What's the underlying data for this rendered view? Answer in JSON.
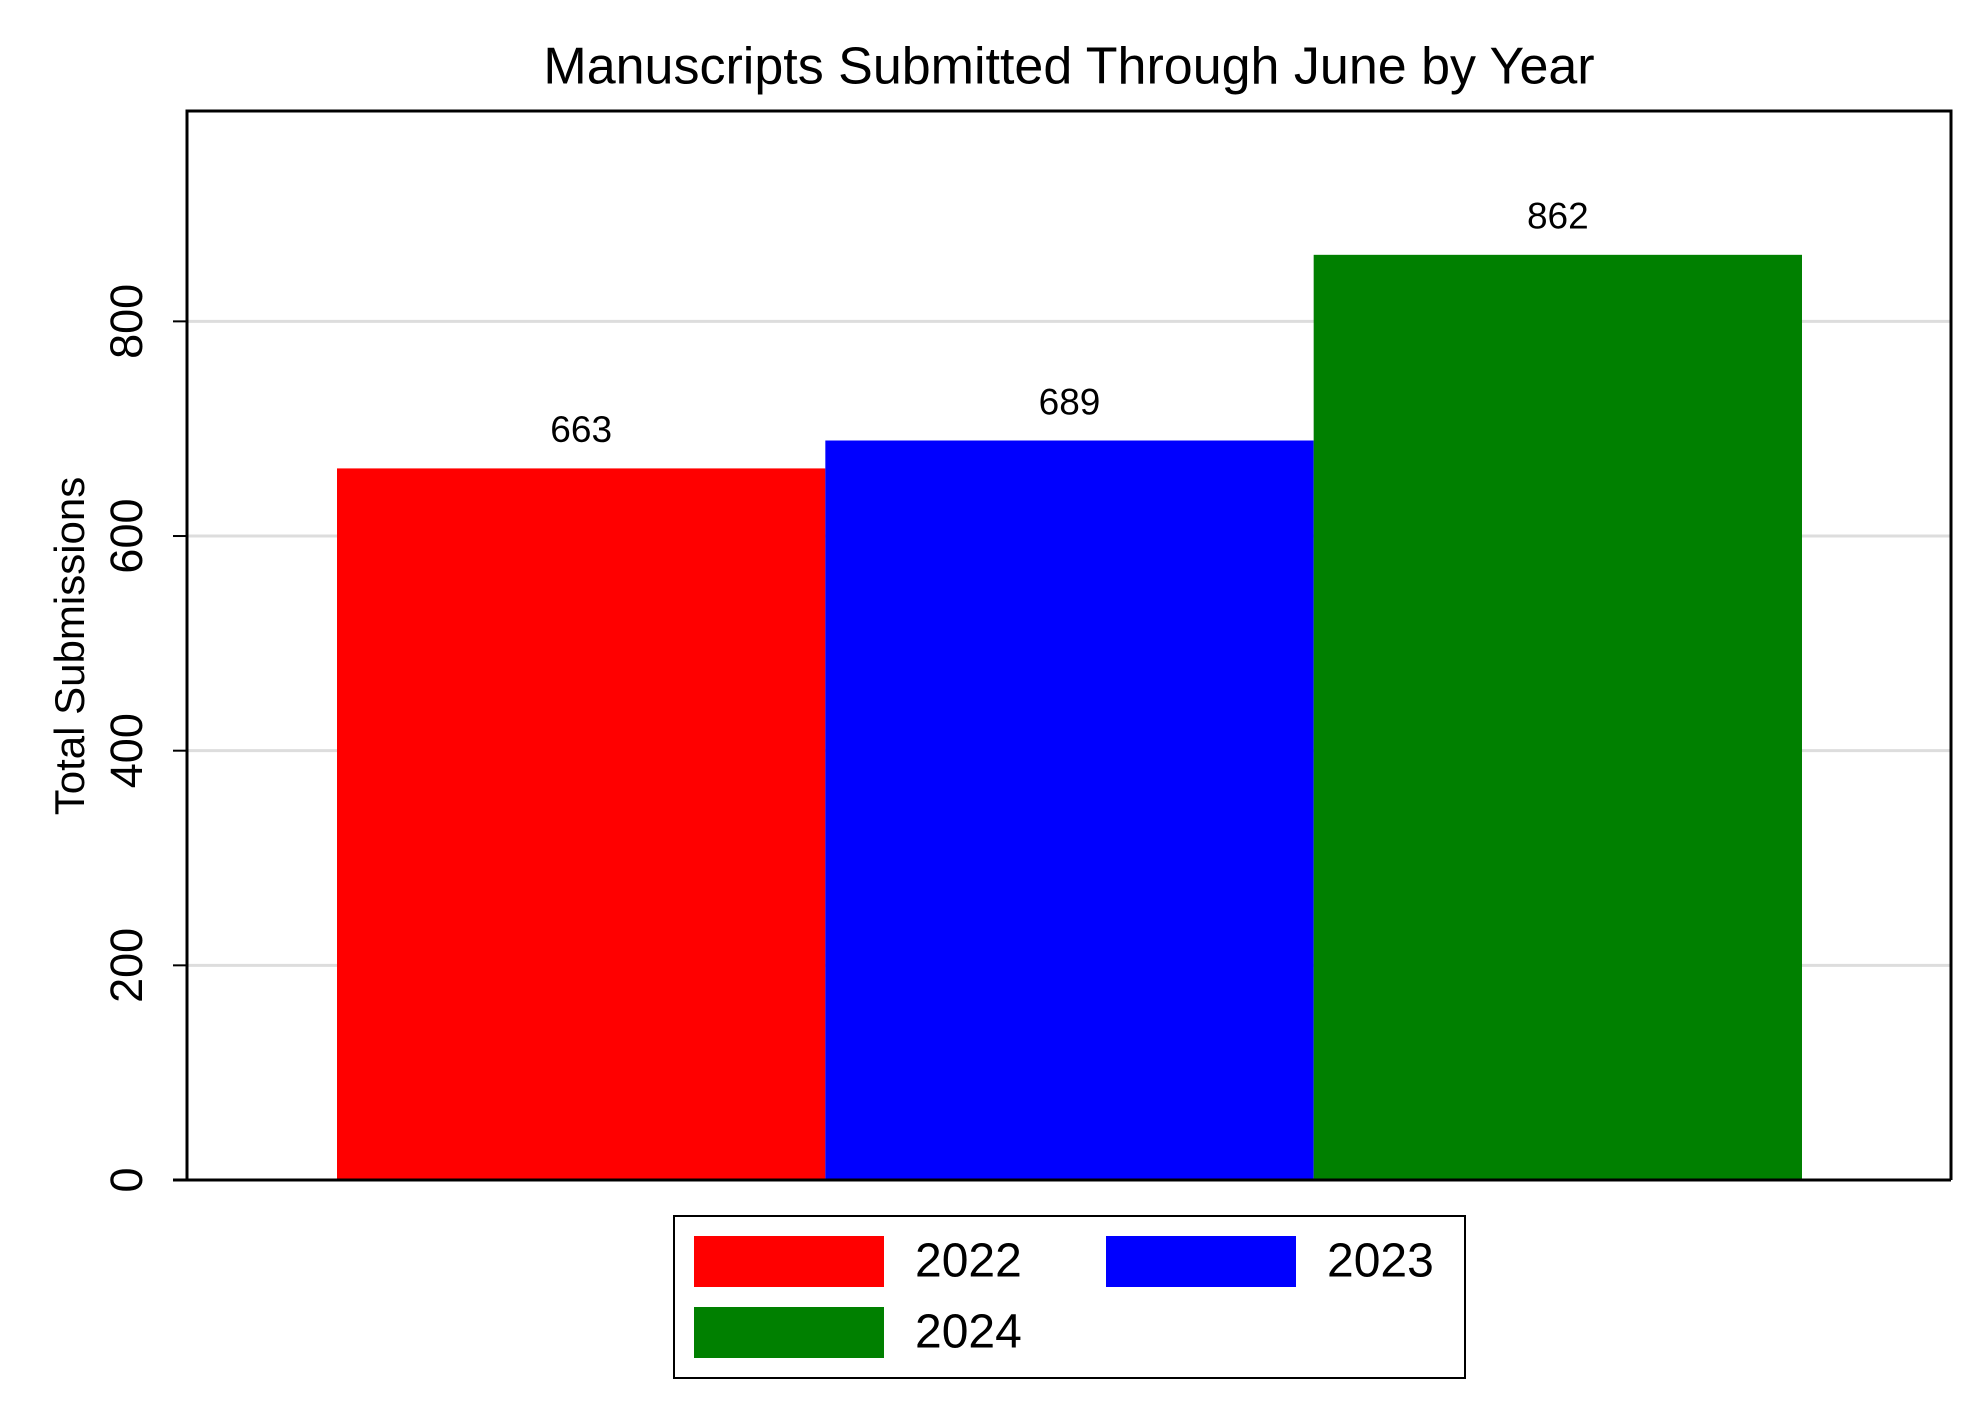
{
  "chart_data": {
    "type": "bar",
    "title": "Manuscripts Submitted Through June by Year",
    "y_label": "Total Submissions",
    "series": [
      {
        "name": "2022",
        "color": "#ff0000",
        "values": [
          663
        ]
      },
      {
        "name": "2023",
        "color": "#0000ff",
        "values": [
          689
        ]
      },
      {
        "name": "2024",
        "color": "#008000",
        "values": [
          862
        ]
      }
    ],
    "ylim": [
      0,
      996
    ],
    "yticks": [
      0,
      200,
      400,
      600,
      800
    ],
    "grid": true,
    "legend": "bottom"
  }
}
